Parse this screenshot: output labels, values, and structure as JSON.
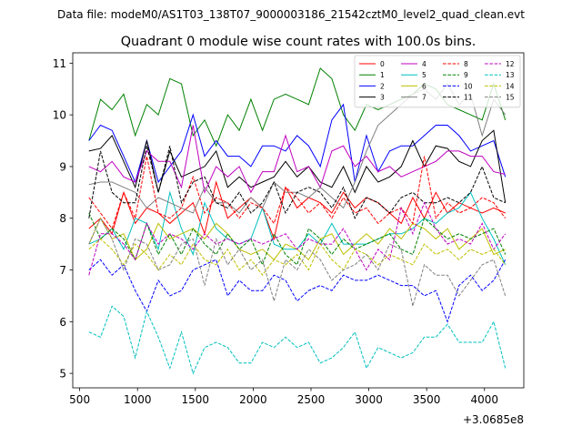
{
  "figure": {
    "suptitle": "Data file: modeM0/AS1T03_138T07_9000003186_21542cztM0_level2_quad_clean.evt"
  },
  "chart_data": {
    "type": "line",
    "title": "Quadrant 0 module wise count rates with 100.0s bins.",
    "xlabel": "",
    "ylabel": "",
    "x_offset_label": "+3.0685e8",
    "xlim": [
      440,
      4340
    ],
    "ylim": [
      4.72,
      11.2
    ],
    "xticks": [
      500,
      1000,
      1500,
      2000,
      2500,
      3000,
      3500,
      4000
    ],
    "yticks": [
      5,
      6,
      7,
      8,
      9,
      10,
      11
    ],
    "grid": false,
    "legend_placement": "top-right",
    "legend_columns": 4,
    "x": [
      580,
      680,
      780,
      880,
      980,
      1080,
      1180,
      1280,
      1380,
      1480,
      1580,
      1680,
      1780,
      1880,
      1980,
      2080,
      2180,
      2280,
      2380,
      2480,
      2580,
      2680,
      2780,
      2880,
      2980,
      3080,
      3180,
      3280,
      3380,
      3480,
      3580,
      3680,
      3780,
      3880,
      3980,
      4080,
      4180
    ],
    "series": [
      {
        "name": "0",
        "color": "#ff0000",
        "dash": "solid",
        "values": [
          7.8,
          8.0,
          7.7,
          8.5,
          7.9,
          8.2,
          8.1,
          7.9,
          8.1,
          8.3,
          7.7,
          8.7,
          8.0,
          8.2,
          8.4,
          8.2,
          7.6,
          8.6,
          8.2,
          8.4,
          8.3,
          8.1,
          8.5,
          8.2,
          8.4,
          8.3,
          8.1,
          7.9,
          8.4,
          8.0,
          8.5,
          8.1,
          8.3,
          8.2,
          8.1,
          8.2,
          8.1
        ]
      },
      {
        "name": "1",
        "color": "#008000",
        "dash": "solid",
        "values": [
          9.5,
          10.3,
          10.1,
          10.4,
          9.6,
          10.2,
          10.0,
          10.7,
          10.6,
          9.6,
          9.9,
          9.4,
          10.0,
          9.7,
          10.3,
          9.7,
          10.3,
          10.4,
          10.3,
          10.2,
          10.9,
          10.7,
          10.0,
          9.7,
          10.2,
          10.1,
          10.2,
          10.3,
          10.4,
          10.6,
          10.5,
          10.2,
          10.1,
          10.0,
          9.9,
          10.6,
          9.9
        ]
      },
      {
        "name": "2",
        "color": "#0000ff",
        "dash": "solid",
        "values": [
          9.5,
          9.8,
          9.7,
          9.2,
          8.7,
          9.5,
          8.7,
          9.0,
          9.3,
          10.0,
          9.2,
          9.5,
          9.2,
          9.2,
          9.0,
          9.4,
          9.4,
          9.3,
          9.6,
          9.4,
          9.0,
          9.9,
          10.2,
          8.7,
          9.6,
          8.9,
          9.3,
          9.4,
          9.4,
          9.6,
          9.8,
          9.8,
          9.6,
          9.3,
          9.4,
          9.5,
          8.8
        ]
      },
      {
        "name": "3",
        "color": "#000000",
        "dash": "solid",
        "values": [
          9.3,
          9.35,
          9.6,
          9.1,
          8.6,
          9.5,
          8.5,
          9.3,
          8.8,
          8.9,
          9.0,
          9.3,
          8.6,
          8.8,
          8.6,
          8.7,
          8.8,
          9.1,
          8.8,
          9.0,
          8.7,
          8.6,
          9.0,
          8.5,
          9.0,
          8.7,
          8.8,
          9.0,
          9.5,
          9.0,
          9.4,
          9.35,
          9.1,
          9.0,
          9.5,
          9.7,
          8.3
        ]
      },
      {
        "name": "4",
        "color": "#bf00bf",
        "dash": "solid",
        "values": [
          9.0,
          8.9,
          9.1,
          8.8,
          8.7,
          9.3,
          9.1,
          9.1,
          8.6,
          9.8,
          8.5,
          9.0,
          8.8,
          9.0,
          8.5,
          8.9,
          8.9,
          9.6,
          8.9,
          9.0,
          8.6,
          9.3,
          9.4,
          9.0,
          9.2,
          8.9,
          9.0,
          8.8,
          8.9,
          9.0,
          9.1,
          9.3,
          9.3,
          9.2,
          9.2,
          8.9,
          8.85
        ]
      },
      {
        "name": "5",
        "color": "#00bfbf",
        "dash": "solid",
        "values": [
          7.5,
          7.6,
          7.8,
          7.4,
          8.0,
          7.9,
          7.4,
          8.5,
          7.8,
          7.3,
          8.3,
          7.8,
          7.6,
          7.5,
          7.6,
          8.2,
          7.5,
          7.4,
          7.4,
          7.7,
          7.5,
          7.9,
          7.5,
          7.5,
          7.5,
          7.6,
          7.7,
          7.7,
          7.8,
          8.0,
          7.9,
          8.1,
          8.2,
          8.5,
          8.0,
          7.6,
          7.1
        ]
      },
      {
        "name": "6",
        "color": "#bfbf00",
        "dash": "solid",
        "values": [
          7.5,
          8.0,
          7.6,
          7.7,
          7.2,
          7.4,
          7.9,
          7.6,
          7.7,
          7.8,
          7.6,
          7.9,
          7.7,
          7.4,
          7.3,
          7.4,
          7.2,
          7.5,
          7.4,
          7.2,
          7.6,
          7.7,
          7.3,
          7.5,
          7.7,
          7.5,
          7.8,
          7.6,
          7.9,
          7.8,
          7.6,
          7.8,
          7.4,
          7.6,
          7.8,
          7.3,
          7.4
        ]
      },
      {
        "name": "7",
        "color": "#808080",
        "dash": "solid",
        "values": [
          8.65,
          8.7,
          8.7,
          8.6,
          8.5,
          8.2,
          8.4,
          8.3,
          8.2,
          8.1,
          8.6,
          8.3,
          8.3,
          8.1,
          8.4,
          8.2,
          8.7,
          8.5,
          8.5,
          8.4,
          8.6,
          8.4,
          8.2,
          8.7,
          9.3,
          9.8,
          10.0,
          10.2,
          10.4,
          10.5,
          10.3,
          10.6,
          10.2,
          10.4,
          9.6,
          10.3,
          10.0
        ]
      },
      {
        "name": "8",
        "color": "#ff0000",
        "dash": "dashed",
        "values": [
          8.4,
          8.1,
          7.8,
          8.5,
          8.0,
          9.2,
          8.1,
          8.0,
          8.2,
          8.8,
          8.1,
          8.4,
          8.3,
          8.0,
          8.3,
          8.2,
          7.9,
          8.6,
          8.4,
          8.1,
          8.3,
          8.0,
          8.4,
          8.1,
          8.2,
          7.9,
          8.1,
          8.2,
          7.9,
          9.2,
          8.0,
          8.3,
          8.1,
          8.2,
          8.4,
          8.3,
          8.0
        ]
      },
      {
        "name": "9",
        "color": "#008000",
        "dash": "dashed",
        "values": [
          8.1,
          7.6,
          7.8,
          7.6,
          7.2,
          7.9,
          7.3,
          7.7,
          7.3,
          7.8,
          7.5,
          7.3,
          7.7,
          7.4,
          7.6,
          7.1,
          7.7,
          7.3,
          7.1,
          7.8,
          7.6,
          7.3,
          7.6,
          7.4,
          7.5,
          7.6,
          7.7,
          7.4,
          7.3,
          8.0,
          7.8,
          7.6,
          7.7,
          7.6,
          7.7,
          7.8,
          7.3
        ]
      },
      {
        "name": "10",
        "color": "#0000ff",
        "dash": "dashed",
        "values": [
          7.0,
          7.2,
          6.9,
          7.1,
          6.6,
          6.2,
          6.8,
          6.5,
          6.6,
          7.0,
          7.1,
          7.2,
          6.5,
          6.8,
          6.6,
          6.6,
          6.9,
          6.8,
          6.4,
          6.6,
          6.7,
          6.6,
          6.9,
          6.8,
          6.8,
          6.9,
          6.8,
          6.7,
          6.7,
          6.5,
          6.6,
          6.0,
          6.7,
          6.9,
          6.6,
          6.8,
          7.2
        ]
      },
      {
        "name": "11",
        "color": "#000000",
        "dash": "dashed",
        "values": [
          8.0,
          9.3,
          8.5,
          8.3,
          8.3,
          9.4,
          8.5,
          9.4,
          8.3,
          8.7,
          8.8,
          8.3,
          8.2,
          8.5,
          8.1,
          8.3,
          8.7,
          8.1,
          8.5,
          8.6,
          8.5,
          8.2,
          8.6,
          8.0,
          8.4,
          8.3,
          8.1,
          8.4,
          8.5,
          8.3,
          8.3,
          8.4,
          8.3,
          8.5,
          9.0,
          8.4,
          8.3
        ]
      },
      {
        "name": "12",
        "color": "#bf00bf",
        "dash": "dashed",
        "values": [
          6.9,
          7.7,
          7.7,
          7.5,
          7.2,
          7.9,
          7.5,
          7.7,
          7.6,
          7.4,
          7.7,
          7.5,
          7.6,
          7.5,
          7.6,
          7.5,
          7.6,
          7.7,
          7.4,
          7.6,
          7.5,
          7.5,
          7.8,
          7.4,
          7.0,
          7.4,
          7.2,
          8.2,
          7.7,
          8.3,
          7.8,
          7.5,
          7.6,
          7.5,
          7.9,
          7.4,
          7.7
        ]
      },
      {
        "name": "13",
        "color": "#00bfbf",
        "dash": "dashed",
        "values": [
          5.8,
          5.7,
          6.3,
          6.1,
          5.3,
          6.2,
          5.7,
          5.1,
          5.8,
          5.0,
          5.5,
          5.6,
          5.5,
          5.2,
          5.2,
          5.6,
          5.5,
          5.7,
          5.5,
          5.6,
          5.2,
          5.3,
          5.5,
          5.8,
          5.1,
          5.5,
          5.4,
          5.3,
          5.4,
          5.7,
          5.7,
          5.95,
          5.6,
          5.6,
          5.6,
          6.0,
          5.1
        ]
      },
      {
        "name": "14",
        "color": "#bfbf00",
        "dash": "dashed",
        "values": [
          7.4,
          7.6,
          7.4,
          7.1,
          7.5,
          7.3,
          7.0,
          7.3,
          7.1,
          7.5,
          7.2,
          7.1,
          7.4,
          7.0,
          7.2,
          6.9,
          7.2,
          7.1,
          7.3,
          7.0,
          7.5,
          7.2,
          7.0,
          7.4,
          7.3,
          7.1,
          7.3,
          7.2,
          7.1,
          7.5,
          7.3,
          7.4,
          7.2,
          7.4,
          7.3,
          7.4,
          7.1
        ]
      },
      {
        "name": "15",
        "color": "#808080",
        "dash": "dashed",
        "values": [
          7.5,
          8.0,
          7.6,
          7.0,
          7.6,
          7.5,
          7.0,
          7.1,
          7.5,
          7.6,
          6.7,
          7.6,
          7.1,
          7.4,
          7.0,
          7.2,
          6.4,
          7.2,
          7.0,
          7.4,
          7.2,
          6.8,
          7.0,
          7.1,
          7.3,
          7.0,
          7.5,
          7.4,
          6.3,
          7.1,
          6.9,
          6.9,
          6.5,
          6.8,
          7.1,
          7.2,
          6.5
        ]
      }
    ]
  }
}
